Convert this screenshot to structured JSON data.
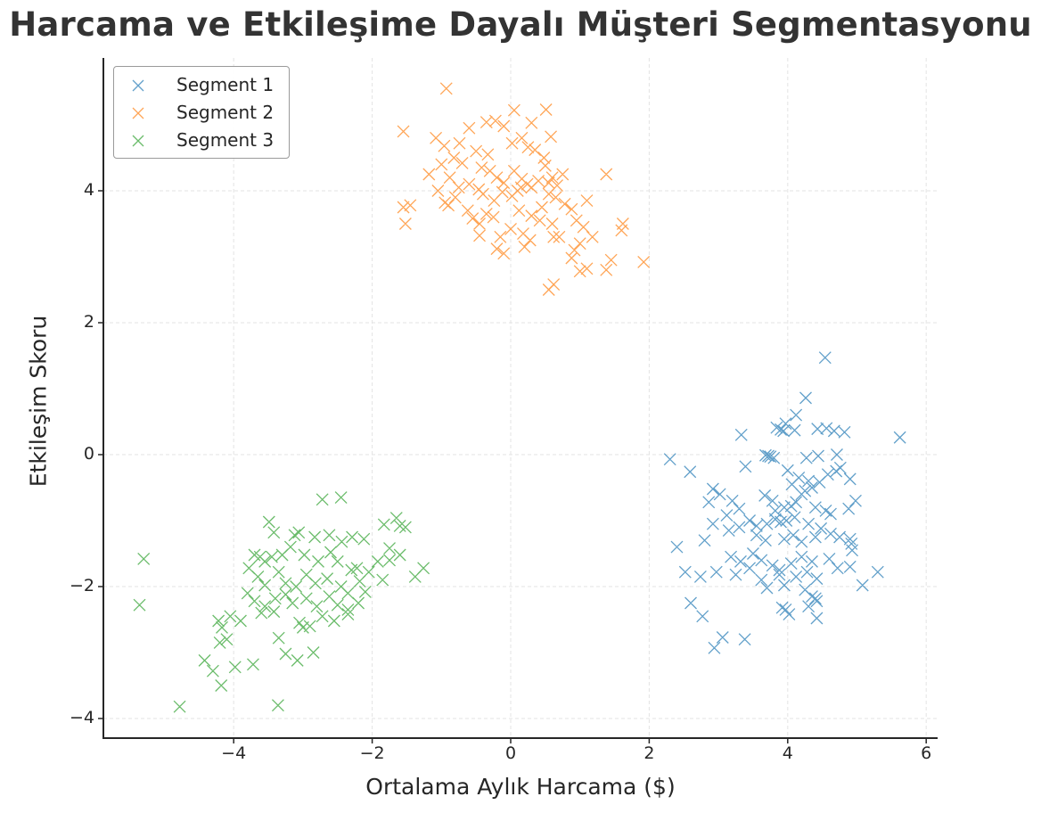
{
  "chart_data": {
    "type": "scatter",
    "title": "Harcama ve Etkileşime Dayalı Müşteri Segmentasyonu",
    "xlabel": "Ortalama Aylık Harcama ($)",
    "ylabel": "Etkileşim Skoru",
    "xlim": [
      -5.88,
      6.16
    ],
    "ylim": [
      -4.3,
      6.0
    ],
    "xticks": [
      -4,
      -2,
      0,
      2,
      4,
      6
    ],
    "xtick_labels": [
      "−4",
      "−2",
      "0",
      "2",
      "4",
      "6"
    ],
    "yticks": [
      -4,
      -2,
      0,
      2,
      4
    ],
    "ytick_labels": [
      "−4",
      "−2",
      "0",
      "2",
      "4"
    ],
    "grid": true,
    "legend_position": "upper left",
    "marker": "x",
    "series": [
      {
        "name": "Segment 1",
        "color": "#1f77b4",
        "points": [
          [
            4.54,
            1.47
          ],
          [
            4.26,
            0.86
          ],
          [
            4.12,
            0.6
          ],
          [
            3.97,
            0.47
          ],
          [
            3.84,
            0.41
          ],
          [
            3.9,
            0.38
          ],
          [
            3.94,
            0.36
          ],
          [
            4.1,
            0.37
          ],
          [
            4.43,
            0.39
          ],
          [
            4.56,
            0.4
          ],
          [
            4.67,
            0.36
          ],
          [
            4.82,
            0.34
          ],
          [
            5.62,
            0.26
          ],
          [
            3.33,
            0.3
          ],
          [
            2.3,
            -0.07
          ],
          [
            3.68,
            -0.01
          ],
          [
            3.72,
            -0.02
          ],
          [
            3.75,
            -0.03
          ],
          [
            3.8,
            -0.05
          ],
          [
            4.27,
            -0.05
          ],
          [
            4.44,
            -0.02
          ],
          [
            4.71,
            0.0
          ],
          [
            3.39,
            -0.18
          ],
          [
            2.59,
            -0.26
          ],
          [
            4.0,
            -0.24
          ],
          [
            4.16,
            -0.35
          ],
          [
            4.3,
            -0.4
          ],
          [
            4.35,
            -0.5
          ],
          [
            4.25,
            -0.55
          ],
          [
            4.2,
            -0.6
          ],
          [
            4.06,
            -0.45
          ],
          [
            4.46,
            -0.42
          ],
          [
            4.58,
            -0.3
          ],
          [
            4.76,
            -0.2
          ],
          [
            4.9,
            -0.37
          ],
          [
            4.7,
            -0.25
          ],
          [
            2.92,
            -0.52
          ],
          [
            3.02,
            -0.6
          ],
          [
            3.2,
            -0.7
          ],
          [
            3.3,
            -0.82
          ],
          [
            3.67,
            -0.62
          ],
          [
            3.78,
            -0.7
          ],
          [
            3.82,
            -0.85
          ],
          [
            3.95,
            -0.8
          ],
          [
            4.05,
            -0.78
          ],
          [
            4.12,
            -0.72
          ],
          [
            4.4,
            -0.8
          ],
          [
            4.55,
            -0.85
          ],
          [
            4.98,
            -0.7
          ],
          [
            4.88,
            -0.82
          ],
          [
            2.86,
            -0.72
          ],
          [
            3.12,
            -0.92
          ],
          [
            3.45,
            -1.0
          ],
          [
            3.55,
            -1.08
          ],
          [
            3.7,
            -1.05
          ],
          [
            3.82,
            -0.98
          ],
          [
            3.9,
            -1.02
          ],
          [
            3.98,
            -1.0
          ],
          [
            4.1,
            -0.95
          ],
          [
            4.3,
            -1.05
          ],
          [
            4.48,
            -1.12
          ],
          [
            4.62,
            -0.9
          ],
          [
            4.75,
            -1.25
          ],
          [
            2.92,
            -1.05
          ],
          [
            3.15,
            -1.15
          ],
          [
            3.3,
            -1.1
          ],
          [
            3.55,
            -1.22
          ],
          [
            3.68,
            -1.3
          ],
          [
            3.95,
            -1.28
          ],
          [
            4.08,
            -1.22
          ],
          [
            4.2,
            -1.32
          ],
          [
            4.4,
            -1.25
          ],
          [
            4.62,
            -1.2
          ],
          [
            4.9,
            -1.28
          ],
          [
            4.92,
            -1.35
          ],
          [
            4.93,
            -1.45
          ],
          [
            2.4,
            -1.4
          ],
          [
            2.8,
            -1.3
          ],
          [
            3.18,
            -1.55
          ],
          [
            3.32,
            -1.62
          ],
          [
            3.5,
            -1.5
          ],
          [
            3.62,
            -1.6
          ],
          [
            3.78,
            -1.68
          ],
          [
            3.88,
            -1.75
          ],
          [
            4.05,
            -1.65
          ],
          [
            4.2,
            -1.55
          ],
          [
            4.35,
            -1.62
          ],
          [
            4.6,
            -1.58
          ],
          [
            4.72,
            -1.72
          ],
          [
            4.9,
            -1.7
          ],
          [
            5.3,
            -1.78
          ],
          [
            2.52,
            -1.78
          ],
          [
            2.74,
            -1.85
          ],
          [
            2.97,
            -1.78
          ],
          [
            3.25,
            -1.82
          ],
          [
            3.45,
            -1.72
          ],
          [
            3.62,
            -1.9
          ],
          [
            3.88,
            -1.82
          ],
          [
            3.95,
            -1.98
          ],
          [
            4.12,
            -1.85
          ],
          [
            4.28,
            -1.78
          ],
          [
            4.42,
            -1.88
          ],
          [
            5.08,
            -1.98
          ],
          [
            3.7,
            -2.02
          ],
          [
            4.25,
            -2.05
          ],
          [
            4.35,
            -2.15
          ],
          [
            4.42,
            -2.22
          ],
          [
            4.3,
            -2.3
          ],
          [
            4.4,
            -2.18
          ],
          [
            2.6,
            -2.25
          ],
          [
            3.97,
            -2.35
          ],
          [
            4.02,
            -2.42
          ],
          [
            3.92,
            -2.32
          ],
          [
            4.42,
            -2.48
          ],
          [
            2.77,
            -2.45
          ],
          [
            3.06,
            -2.77
          ],
          [
            2.94,
            -2.93
          ],
          [
            3.38,
            -2.8
          ]
        ]
      },
      {
        "name": "Segment 2",
        "color": "#ff7f0e",
        "points": [
          [
            -0.93,
            5.55
          ],
          [
            -1.55,
            4.9
          ],
          [
            0.05,
            5.22
          ],
          [
            0.51,
            5.23
          ],
          [
            -0.35,
            5.04
          ],
          [
            -0.22,
            5.06
          ],
          [
            -0.1,
            4.98
          ],
          [
            0.3,
            5.03
          ],
          [
            0.16,
            4.8
          ],
          [
            -0.6,
            4.95
          ],
          [
            -1.08,
            4.8
          ],
          [
            -0.74,
            4.72
          ],
          [
            -0.96,
            4.68
          ],
          [
            -0.5,
            4.6
          ],
          [
            -0.33,
            4.55
          ],
          [
            0.02,
            4.72
          ],
          [
            0.25,
            4.66
          ],
          [
            0.35,
            4.62
          ],
          [
            0.58,
            4.82
          ],
          [
            0.48,
            4.5
          ],
          [
            0.5,
            4.38
          ],
          [
            -0.82,
            4.5
          ],
          [
            -0.7,
            4.42
          ],
          [
            -1.0,
            4.4
          ],
          [
            -0.42,
            4.35
          ],
          [
            -1.18,
            4.25
          ],
          [
            -0.88,
            4.2
          ],
          [
            -0.6,
            4.1
          ],
          [
            -0.46,
            4.02
          ],
          [
            -0.2,
            4.2
          ],
          [
            0.05,
            4.3
          ],
          [
            0.16,
            4.18
          ],
          [
            0.24,
            4.1
          ],
          [
            0.3,
            4.05
          ],
          [
            0.4,
            4.15
          ],
          [
            0.55,
            4.12
          ],
          [
            0.6,
            4.2
          ],
          [
            0.67,
            4.08
          ],
          [
            1.38,
            4.25
          ],
          [
            -1.05,
            4.0
          ],
          [
            -0.75,
            4.05
          ],
          [
            -0.4,
            3.95
          ],
          [
            -0.24,
            3.85
          ],
          [
            -0.12,
            3.98
          ],
          [
            0.02,
            3.92
          ],
          [
            0.15,
            4.05
          ],
          [
            0.55,
            3.95
          ],
          [
            0.65,
            3.9
          ],
          [
            0.78,
            3.8
          ],
          [
            0.88,
            3.72
          ],
          [
            1.1,
            3.85
          ],
          [
            -0.9,
            3.78
          ],
          [
            -0.95,
            3.82
          ],
          [
            -1.55,
            3.75
          ],
          [
            -1.45,
            3.78
          ],
          [
            -1.52,
            3.5
          ],
          [
            -0.62,
            3.7
          ],
          [
            -0.55,
            3.58
          ],
          [
            -0.35,
            3.65
          ],
          [
            -0.25,
            3.6
          ],
          [
            -0.45,
            3.5
          ],
          [
            0.12,
            3.7
          ],
          [
            0.3,
            3.62
          ],
          [
            0.42,
            3.55
          ],
          [
            0.6,
            3.5
          ],
          [
            0.95,
            3.55
          ],
          [
            1.05,
            3.45
          ],
          [
            1.62,
            3.5
          ],
          [
            1.6,
            3.4
          ],
          [
            -0.45,
            3.32
          ],
          [
            -0.15,
            3.3
          ],
          [
            0.0,
            3.42
          ],
          [
            0.18,
            3.35
          ],
          [
            0.28,
            3.25
          ],
          [
            0.62,
            3.3
          ],
          [
            0.7,
            3.3
          ],
          [
            1.0,
            3.2
          ],
          [
            1.18,
            3.3
          ],
          [
            -0.2,
            3.12
          ],
          [
            -0.1,
            3.05
          ],
          [
            0.2,
            3.15
          ],
          [
            0.92,
            3.1
          ],
          [
            0.88,
            2.98
          ],
          [
            1.45,
            2.95
          ],
          [
            1.92,
            2.92
          ],
          [
            1.0,
            2.78
          ],
          [
            1.1,
            2.82
          ],
          [
            1.38,
            2.8
          ],
          [
            0.55,
            2.5
          ],
          [
            0.62,
            2.58
          ],
          [
            0.1,
            4.0
          ],
          [
            -0.1,
            4.12
          ],
          [
            -0.3,
            4.3
          ],
          [
            0.75,
            4.25
          ],
          [
            0.45,
            3.75
          ],
          [
            -0.8,
            3.9
          ]
        ]
      },
      {
        "name": "Segment 3",
        "color": "#2ca02c",
        "points": [
          [
            -5.3,
            -1.58
          ],
          [
            -5.36,
            -2.28
          ],
          [
            -4.78,
            -3.82
          ],
          [
            -3.36,
            -3.8
          ],
          [
            -2.72,
            -0.68
          ],
          [
            -2.45,
            -0.65
          ],
          [
            -1.65,
            -0.96
          ],
          [
            -1.6,
            -1.08
          ],
          [
            -1.52,
            -1.1
          ],
          [
            -3.49,
            -1.02
          ],
          [
            -3.42,
            -1.18
          ],
          [
            -1.83,
            -1.06
          ],
          [
            -3.12,
            -1.22
          ],
          [
            -3.06,
            -1.18
          ],
          [
            -2.83,
            -1.25
          ],
          [
            -2.62,
            -1.22
          ],
          [
            -2.44,
            -1.32
          ],
          [
            -2.29,
            -1.25
          ],
          [
            -2.12,
            -1.28
          ],
          [
            -3.7,
            -1.52
          ],
          [
            -3.62,
            -1.55
          ],
          [
            -3.55,
            -1.62
          ],
          [
            -3.45,
            -1.55
          ],
          [
            -3.3,
            -1.52
          ],
          [
            -3.18,
            -1.4
          ],
          [
            -2.98,
            -1.52
          ],
          [
            -2.78,
            -1.62
          ],
          [
            -2.6,
            -1.48
          ],
          [
            -2.5,
            -1.62
          ],
          [
            -2.3,
            -1.75
          ],
          [
            -2.22,
            -1.72
          ],
          [
            -2.05,
            -1.78
          ],
          [
            -1.92,
            -1.62
          ],
          [
            -1.75,
            -1.42
          ],
          [
            -1.75,
            -1.6
          ],
          [
            -1.6,
            -1.52
          ],
          [
            -1.26,
            -1.72
          ],
          [
            -1.38,
            -1.85
          ],
          [
            -1.85,
            -1.9
          ],
          [
            -3.78,
            -1.72
          ],
          [
            -3.65,
            -1.85
          ],
          [
            -3.55,
            -1.98
          ],
          [
            -3.35,
            -1.78
          ],
          [
            -3.25,
            -1.95
          ],
          [
            -3.1,
            -2.0
          ],
          [
            -2.95,
            -1.82
          ],
          [
            -2.82,
            -1.95
          ],
          [
            -2.65,
            -1.88
          ],
          [
            -2.45,
            -2.0
          ],
          [
            -2.35,
            -2.1
          ],
          [
            -2.18,
            -1.92
          ],
          [
            -2.1,
            -2.08
          ],
          [
            -3.8,
            -2.1
          ],
          [
            -3.7,
            -2.22
          ],
          [
            -3.55,
            -2.3
          ],
          [
            -3.4,
            -2.18
          ],
          [
            -3.25,
            -2.12
          ],
          [
            -3.15,
            -2.25
          ],
          [
            -2.95,
            -2.18
          ],
          [
            -2.8,
            -2.3
          ],
          [
            -2.62,
            -2.15
          ],
          [
            -2.5,
            -2.28
          ],
          [
            -2.35,
            -2.35
          ],
          [
            -2.2,
            -2.25
          ],
          [
            -4.05,
            -2.45
          ],
          [
            -3.9,
            -2.52
          ],
          [
            -3.6,
            -2.4
          ],
          [
            -3.42,
            -2.38
          ],
          [
            -3.05,
            -2.55
          ],
          [
            -3.0,
            -2.62
          ],
          [
            -2.9,
            -2.6
          ],
          [
            -2.72,
            -2.45
          ],
          [
            -2.55,
            -2.52
          ],
          [
            -2.35,
            -2.42
          ],
          [
            -4.22,
            -2.52
          ],
          [
            -4.17,
            -2.62
          ],
          [
            -4.2,
            -2.85
          ],
          [
            -4.1,
            -2.8
          ],
          [
            -3.35,
            -2.78
          ],
          [
            -3.25,
            -3.02
          ],
          [
            -2.85,
            -3.0
          ],
          [
            -3.08,
            -3.12
          ],
          [
            -4.42,
            -3.12
          ],
          [
            -4.3,
            -3.28
          ],
          [
            -3.72,
            -3.18
          ],
          [
            -3.98,
            -3.22
          ],
          [
            -4.18,
            -3.5
          ]
        ]
      }
    ]
  },
  "title": "Harcama ve Etkileşime Dayalı Müşteri Segmentasyonu",
  "axes": {
    "xlabel": "Ortalama Aylık Harcama ($)",
    "ylabel": "Etkileşim Skoru"
  },
  "legend": {
    "items": [
      {
        "label": "Segment 1",
        "color": "#1f77b4"
      },
      {
        "label": "Segment 2",
        "color": "#ff7f0e"
      },
      {
        "label": "Segment 3",
        "color": "#2ca02c"
      }
    ]
  }
}
